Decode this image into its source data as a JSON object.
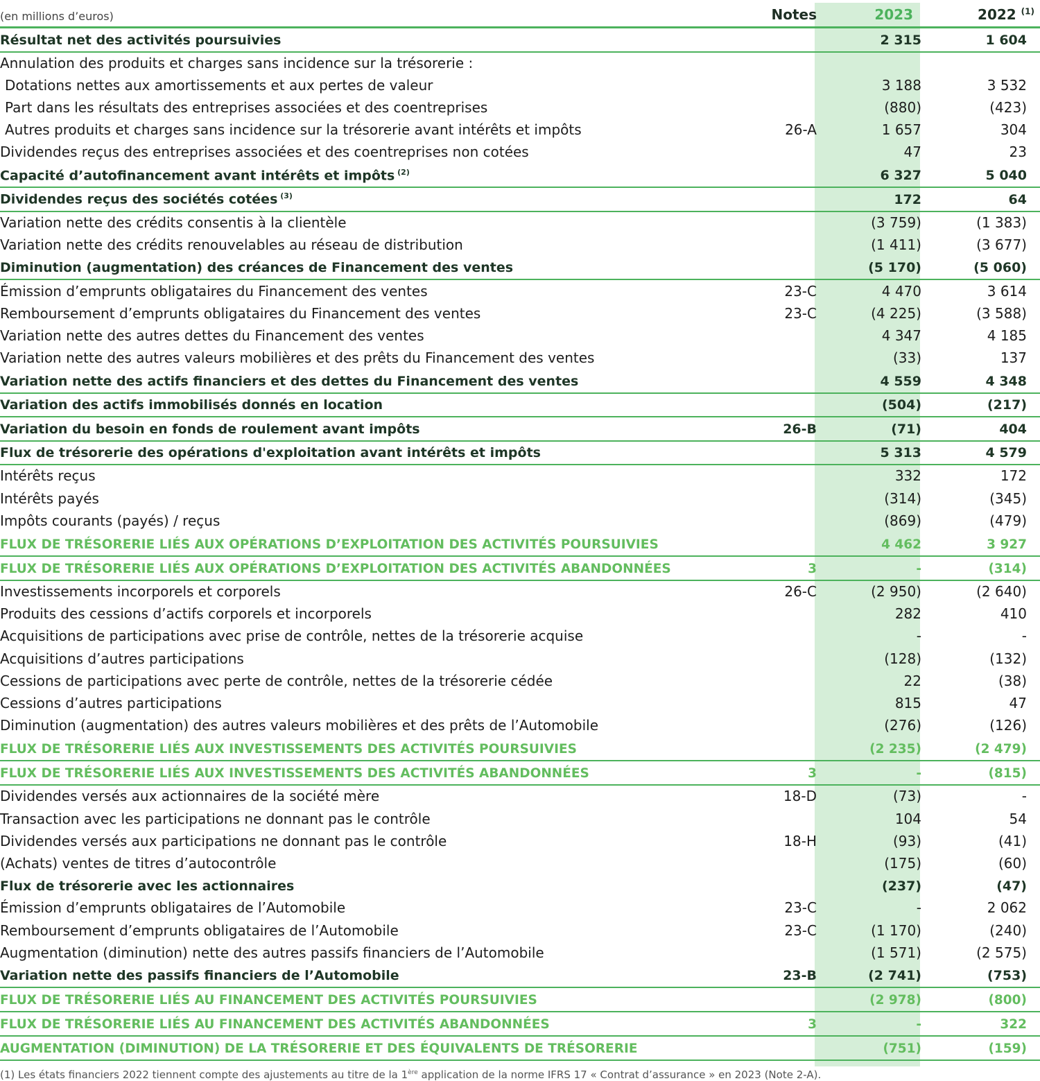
{
  "header": {
    "label": "(en millions d’euros)",
    "notes": "Notes",
    "col1": "2023",
    "col2": "2022",
    "col2_sup": "(1)"
  },
  "rows": [
    {
      "label": "Résultat net des activités poursuivies",
      "note": "",
      "v2023": "2 315",
      "v2022": "1 604",
      "style": "bold"
    },
    {
      "label": "Annulation des produits et charges sans incidence sur la trésorerie :",
      "note": "",
      "v2023": "",
      "v2022": "",
      "style": "normal"
    },
    {
      "label": "Dotations nettes aux amortissements et aux pertes de valeur",
      "note": "",
      "v2023": "3 188",
      "v2022": "3 532",
      "style": "indent"
    },
    {
      "label": "Part dans les résultats des entreprises associées et des coentreprises",
      "note": "",
      "v2023": "(880)",
      "v2022": "(423)",
      "style": "indent"
    },
    {
      "label": "Autres produits et charges sans incidence sur la trésorerie avant intérêts et impôts",
      "note": "26-A",
      "v2023": "1 657",
      "v2022": "304",
      "style": "indent"
    },
    {
      "label": "Dividendes reçus des entreprises associées et des coentreprises non cotées",
      "note": "",
      "v2023": "47",
      "v2022": "23",
      "style": "normal"
    },
    {
      "label": "Capacité d’autofinancement avant intérêts et impôts",
      "sup": "(2)",
      "note": "",
      "v2023": "6 327",
      "v2022": "5 040",
      "style": "bold"
    },
    {
      "label": "Dividendes reçus des sociétés cotées",
      "sup": "(3)",
      "note": "",
      "v2023": "172",
      "v2022": "64",
      "style": "bold"
    },
    {
      "label": "Variation nette des crédits consentis à la clientèle",
      "note": "",
      "v2023": "(3 759)",
      "v2022": "(1 383)",
      "style": "normal"
    },
    {
      "label": "Variation nette des crédits renouvelables au réseau de distribution",
      "note": "",
      "v2023": "(1 411)",
      "v2022": "(3 677)",
      "style": "normal"
    },
    {
      "label": "Diminution (augmentation) des créances de Financement des ventes",
      "note": "",
      "v2023": "(5 170)",
      "v2022": "(5 060)",
      "style": "bold"
    },
    {
      "label": "Émission d’emprunts obligataires du Financement des ventes",
      "note": "23-C",
      "v2023": "4 470",
      "v2022": "3 614",
      "style": "normal"
    },
    {
      "label": "Remboursement d’emprunts obligataires du Financement des ventes",
      "note": "23-C",
      "v2023": "(4 225)",
      "v2022": "(3 588)",
      "style": "normal"
    },
    {
      "label": "Variation nette des autres dettes du Financement des ventes",
      "note": "",
      "v2023": "4 347",
      "v2022": "4 185",
      "style": "normal"
    },
    {
      "label": "Variation nette des autres valeurs mobilières et des prêts du Financement des ventes",
      "note": "",
      "v2023": "(33)",
      "v2022": "137",
      "style": "normal"
    },
    {
      "label": "Variation nette des actifs financiers et des dettes du Financement des ventes",
      "note": "",
      "v2023": "4 559",
      "v2022": "4 348",
      "style": "bold"
    },
    {
      "label": "Variation des actifs immobilisés donnés en location",
      "note": "",
      "v2023": "(504)",
      "v2022": "(217)",
      "style": "bold"
    },
    {
      "label": "Variation du besoin en fonds de roulement avant impôts",
      "note": "26-B",
      "v2023": "(71)",
      "v2022": "404",
      "style": "bold"
    },
    {
      "label": "Flux de trésorerie des opérations d'exploitation avant intérêts et impôts",
      "note": "",
      "v2023": "5 313",
      "v2022": "4 579",
      "style": "bold"
    },
    {
      "label": "Intérêts reçus",
      "note": "",
      "v2023": "332",
      "v2022": "172",
      "style": "normal"
    },
    {
      "label": "Intérêts payés",
      "note": "",
      "v2023": "(314)",
      "v2022": "(345)",
      "style": "normal"
    },
    {
      "label": "Impôts courants (payés) / reçus",
      "note": "",
      "v2023": "(869)",
      "v2022": "(479)",
      "style": "normal"
    },
    {
      "label": "FLUX DE TRÉSORERIE LIÉS AUX OPÉRATIONS D’EXPLOITATION DES ACTIVITÉS POURSUIVIES",
      "note": "",
      "v2023": "4 462",
      "v2022": "3 927",
      "style": "caps"
    },
    {
      "label": "FLUX DE TRÉSORERIE LIÉS AUX OPÉRATIONS D’EXPLOITATION DES ACTIVITÉS ABANDONNÉES",
      "note": "3",
      "v2023": "-",
      "v2022": "(314)",
      "style": "caps"
    },
    {
      "label": "Investissements incorporels et corporels",
      "note": "26-C",
      "v2023": "(2 950)",
      "v2022": "(2 640)",
      "style": "normal"
    },
    {
      "label": "Produits des cessions d’actifs corporels et incorporels",
      "note": "",
      "v2023": "282",
      "v2022": "410",
      "style": "normal"
    },
    {
      "label": "Acquisitions de participations avec prise de contrôle, nettes de la trésorerie acquise",
      "note": "",
      "v2023": "-",
      "v2022": "-",
      "style": "normal"
    },
    {
      "label": "Acquisitions d’autres participations",
      "note": "",
      "v2023": "(128)",
      "v2022": "(132)",
      "style": "normal"
    },
    {
      "label": "Cessions de participations avec perte de contrôle, nettes de la trésorerie cédée",
      "note": "",
      "v2023": "22",
      "v2022": "(38)",
      "style": "normal"
    },
    {
      "label": "Cessions d’autres participations",
      "note": "",
      "v2023": "815",
      "v2022": "47",
      "style": "normal"
    },
    {
      "label": "Diminution (augmentation) des autres valeurs mobilières et des prêts de l’Automobile",
      "note": "",
      "v2023": "(276)",
      "v2022": "(126)",
      "style": "normal"
    },
    {
      "label": "FLUX DE TRÉSORERIE LIÉS AUX INVESTISSEMENTS DES ACTIVITÉS POURSUIVIES",
      "note": "",
      "v2023": "(2 235)",
      "v2022": "(2 479)",
      "style": "caps"
    },
    {
      "label": "FLUX DE TRÉSORERIE LIÉS AUX INVESTISSEMENTS DES ACTIVITÉS ABANDONNÉES",
      "note": "3",
      "v2023": "-",
      "v2022": "(815)",
      "style": "caps"
    },
    {
      "label": "Dividendes versés aux actionnaires de la société mère",
      "note": "18-D",
      "v2023": "(73)",
      "v2022": "-",
      "style": "normal"
    },
    {
      "label": "Transaction avec les participations ne donnant pas le contrôle",
      "note": "",
      "v2023": "104",
      "v2022": "54",
      "style": "normal"
    },
    {
      "label": "Dividendes versés aux participations ne donnant pas le contrôle",
      "note": "18-H",
      "v2023": "(93)",
      "v2022": "(41)",
      "style": "normal"
    },
    {
      "label": "(Achats) ventes de titres d’autocontrôle",
      "note": "",
      "v2023": "(175)",
      "v2022": "(60)",
      "style": "normal"
    },
    {
      "label": "Flux de trésorerie avec les actionnaires",
      "note": "",
      "v2023": "(237)",
      "v2022": "(47)",
      "style": "bold-nb"
    },
    {
      "label": "Émission d’emprunts obligataires de l’Automobile",
      "note": "23-C",
      "v2023": "-",
      "v2022": "2 062",
      "style": "normal"
    },
    {
      "label": "Remboursement d’emprunts obligataires de l’Automobile",
      "note": "23-C",
      "v2023": "(1 170)",
      "v2022": "(240)",
      "style": "normal"
    },
    {
      "label": "Augmentation (diminution) nette des autres passifs financiers de l’Automobile",
      "note": "",
      "v2023": "(1 571)",
      "v2022": "(2 575)",
      "style": "normal"
    },
    {
      "label": "Variation nette des passifs financiers de l’Automobile",
      "note": "23-B",
      "v2023": "(2 741)",
      "v2022": "(753)",
      "style": "bold"
    },
    {
      "label": "FLUX DE TRÉSORERIE LIÉS AU FINANCEMENT DES ACTIVITÉS POURSUIVIES",
      "note": "",
      "v2023": "(2 978)",
      "v2022": "(800)",
      "style": "caps"
    },
    {
      "label": "FLUX DE TRÉSORERIE LIÉS AU FINANCEMENT DES ACTIVITÉS ABANDONNÉES",
      "note": "3",
      "v2023": "-",
      "v2022": "322",
      "style": "caps"
    },
    {
      "label": "AUGMENTATION (DIMINUTION) DE LA TRÉSORERIE ET DES ÉQUIVALENTS DE TRÉSORERIE",
      "note": "",
      "v2023": "(751)",
      "v2022": "(159)",
      "style": "caps"
    }
  ],
  "footnote": {
    "pre": "(1)   Les états financiers 2022 tiennent compte des ajustements au titre de la 1",
    "sup": "ère",
    "post": " application de la norme IFRS 17 « Contrat d’assurance » en 2023 (Note 2-A)."
  },
  "colors": {
    "accent": "#4cb25c",
    "highlight": "#d5eed8",
    "caps_text": "#63bd5f",
    "bold_text": "#1e3626"
  }
}
